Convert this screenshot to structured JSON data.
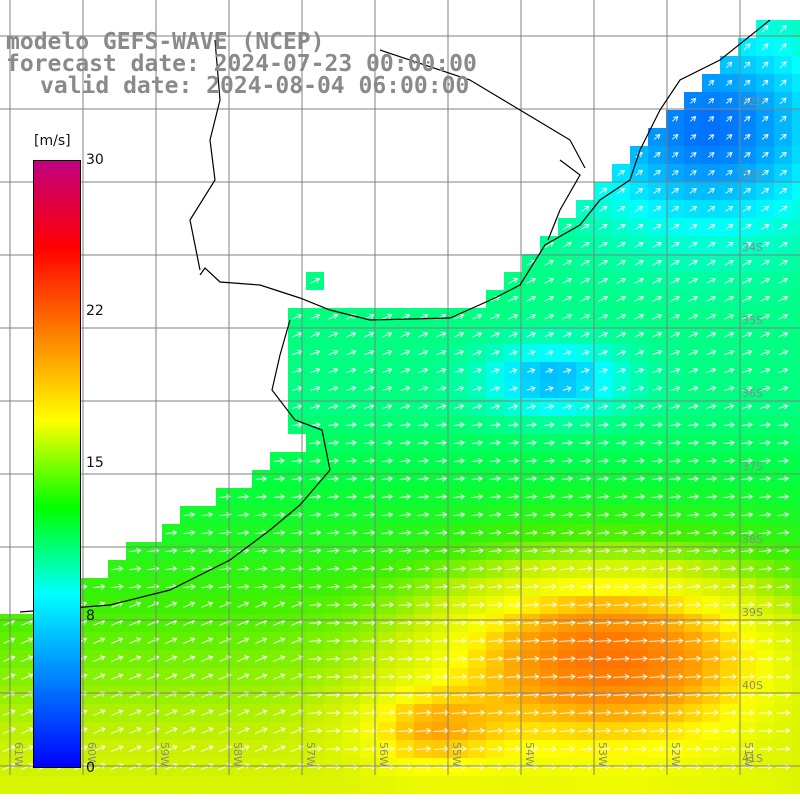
{
  "title": {
    "model": "modelo GEFS-WAVE (NCEP)",
    "forecast": "forecast date: 2024-07-23 00:00:00",
    "valid": "valid date: 2024-08-04 06:00:00"
  },
  "colorbar": {
    "units": "[m/s]",
    "min": 0,
    "max": 30,
    "ticks": [
      "30",
      "22",
      "15",
      "8",
      "0"
    ],
    "colors": [
      "#0000ff",
      "#0080ff",
      "#00ffff",
      "#00ff00",
      "#ffff00",
      "#ff8000",
      "#ff0000",
      "#c00080"
    ]
  },
  "map": {
    "lat_labels": [
      "32S",
      "33S",
      "34S",
      "35S",
      "36S",
      "37S",
      "38S",
      "39S",
      "40S",
      "41S"
    ],
    "lon_labels": [
      "61W",
      "60W",
      "59W",
      "58W",
      "57W",
      "56W",
      "55W",
      "54W",
      "53W",
      "52W",
      "51W"
    ],
    "field": "wind speed and direction (arrows)",
    "palette": {
      "blue": "#0070ff",
      "cyan": "#00d8ff",
      "green": "#20e020",
      "yellow": "#f0f000",
      "orange": "#ff9000",
      "land": "#ffffff",
      "grid": "#808080",
      "coast": "#000000"
    }
  }
}
